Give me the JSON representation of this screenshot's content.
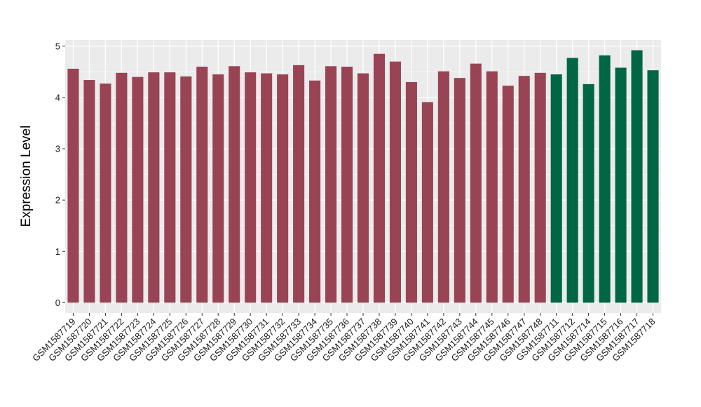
{
  "chart_data": {
    "type": "bar",
    "title": "",
    "xlabel": "",
    "ylabel": "Expression Level",
    "ylim": [
      -0.2,
      5.12
    ],
    "yticks": [
      0,
      1,
      2,
      3,
      4,
      5
    ],
    "grid": true,
    "legend": "none",
    "colors": {
      "group_a": "#994455",
      "group_b": "#006644",
      "panel_bg": "#ebebeb",
      "grid": "#ffffff"
    },
    "categories": [
      "GSM1587719",
      "GSM1587720",
      "GSM1587721",
      "GSM1587722",
      "GSM1587723",
      "GSM1587724",
      "GSM1587725",
      "GSM1587726",
      "GSM1587727",
      "GSM1587728",
      "GSM1587729",
      "GSM1587730",
      "GSM1587731",
      "GSM1587732",
      "GSM1587733",
      "GSM1587734",
      "GSM1587735",
      "GSM1587736",
      "GSM1587737",
      "GSM1587738",
      "GSM1587739",
      "GSM1587740",
      "GSM1587741",
      "GSM1587742",
      "GSM1587743",
      "GSM1587744",
      "GSM1587745",
      "GSM1587746",
      "GSM1587747",
      "GSM1587748",
      "GSM1587711",
      "GSM1587712",
      "GSM1587714",
      "GSM1587715",
      "GSM1587716",
      "GSM1587717",
      "GSM1587718"
    ],
    "values": [
      4.56,
      4.34,
      4.27,
      4.48,
      4.4,
      4.49,
      4.49,
      4.41,
      4.6,
      4.45,
      4.61,
      4.49,
      4.47,
      4.45,
      4.63,
      4.33,
      4.61,
      4.6,
      4.47,
      4.85,
      4.7,
      4.3,
      3.91,
      4.51,
      4.38,
      4.66,
      4.51,
      4.23,
      4.42,
      4.48,
      4.45,
      4.77,
      4.26,
      4.82,
      4.58,
      4.92,
      4.53
    ],
    "groups": [
      "a",
      "a",
      "a",
      "a",
      "a",
      "a",
      "a",
      "a",
      "a",
      "a",
      "a",
      "a",
      "a",
      "a",
      "a",
      "a",
      "a",
      "a",
      "a",
      "a",
      "a",
      "a",
      "a",
      "a",
      "a",
      "a",
      "a",
      "a",
      "a",
      "a",
      "b",
      "b",
      "b",
      "b",
      "b",
      "b",
      "b"
    ]
  }
}
